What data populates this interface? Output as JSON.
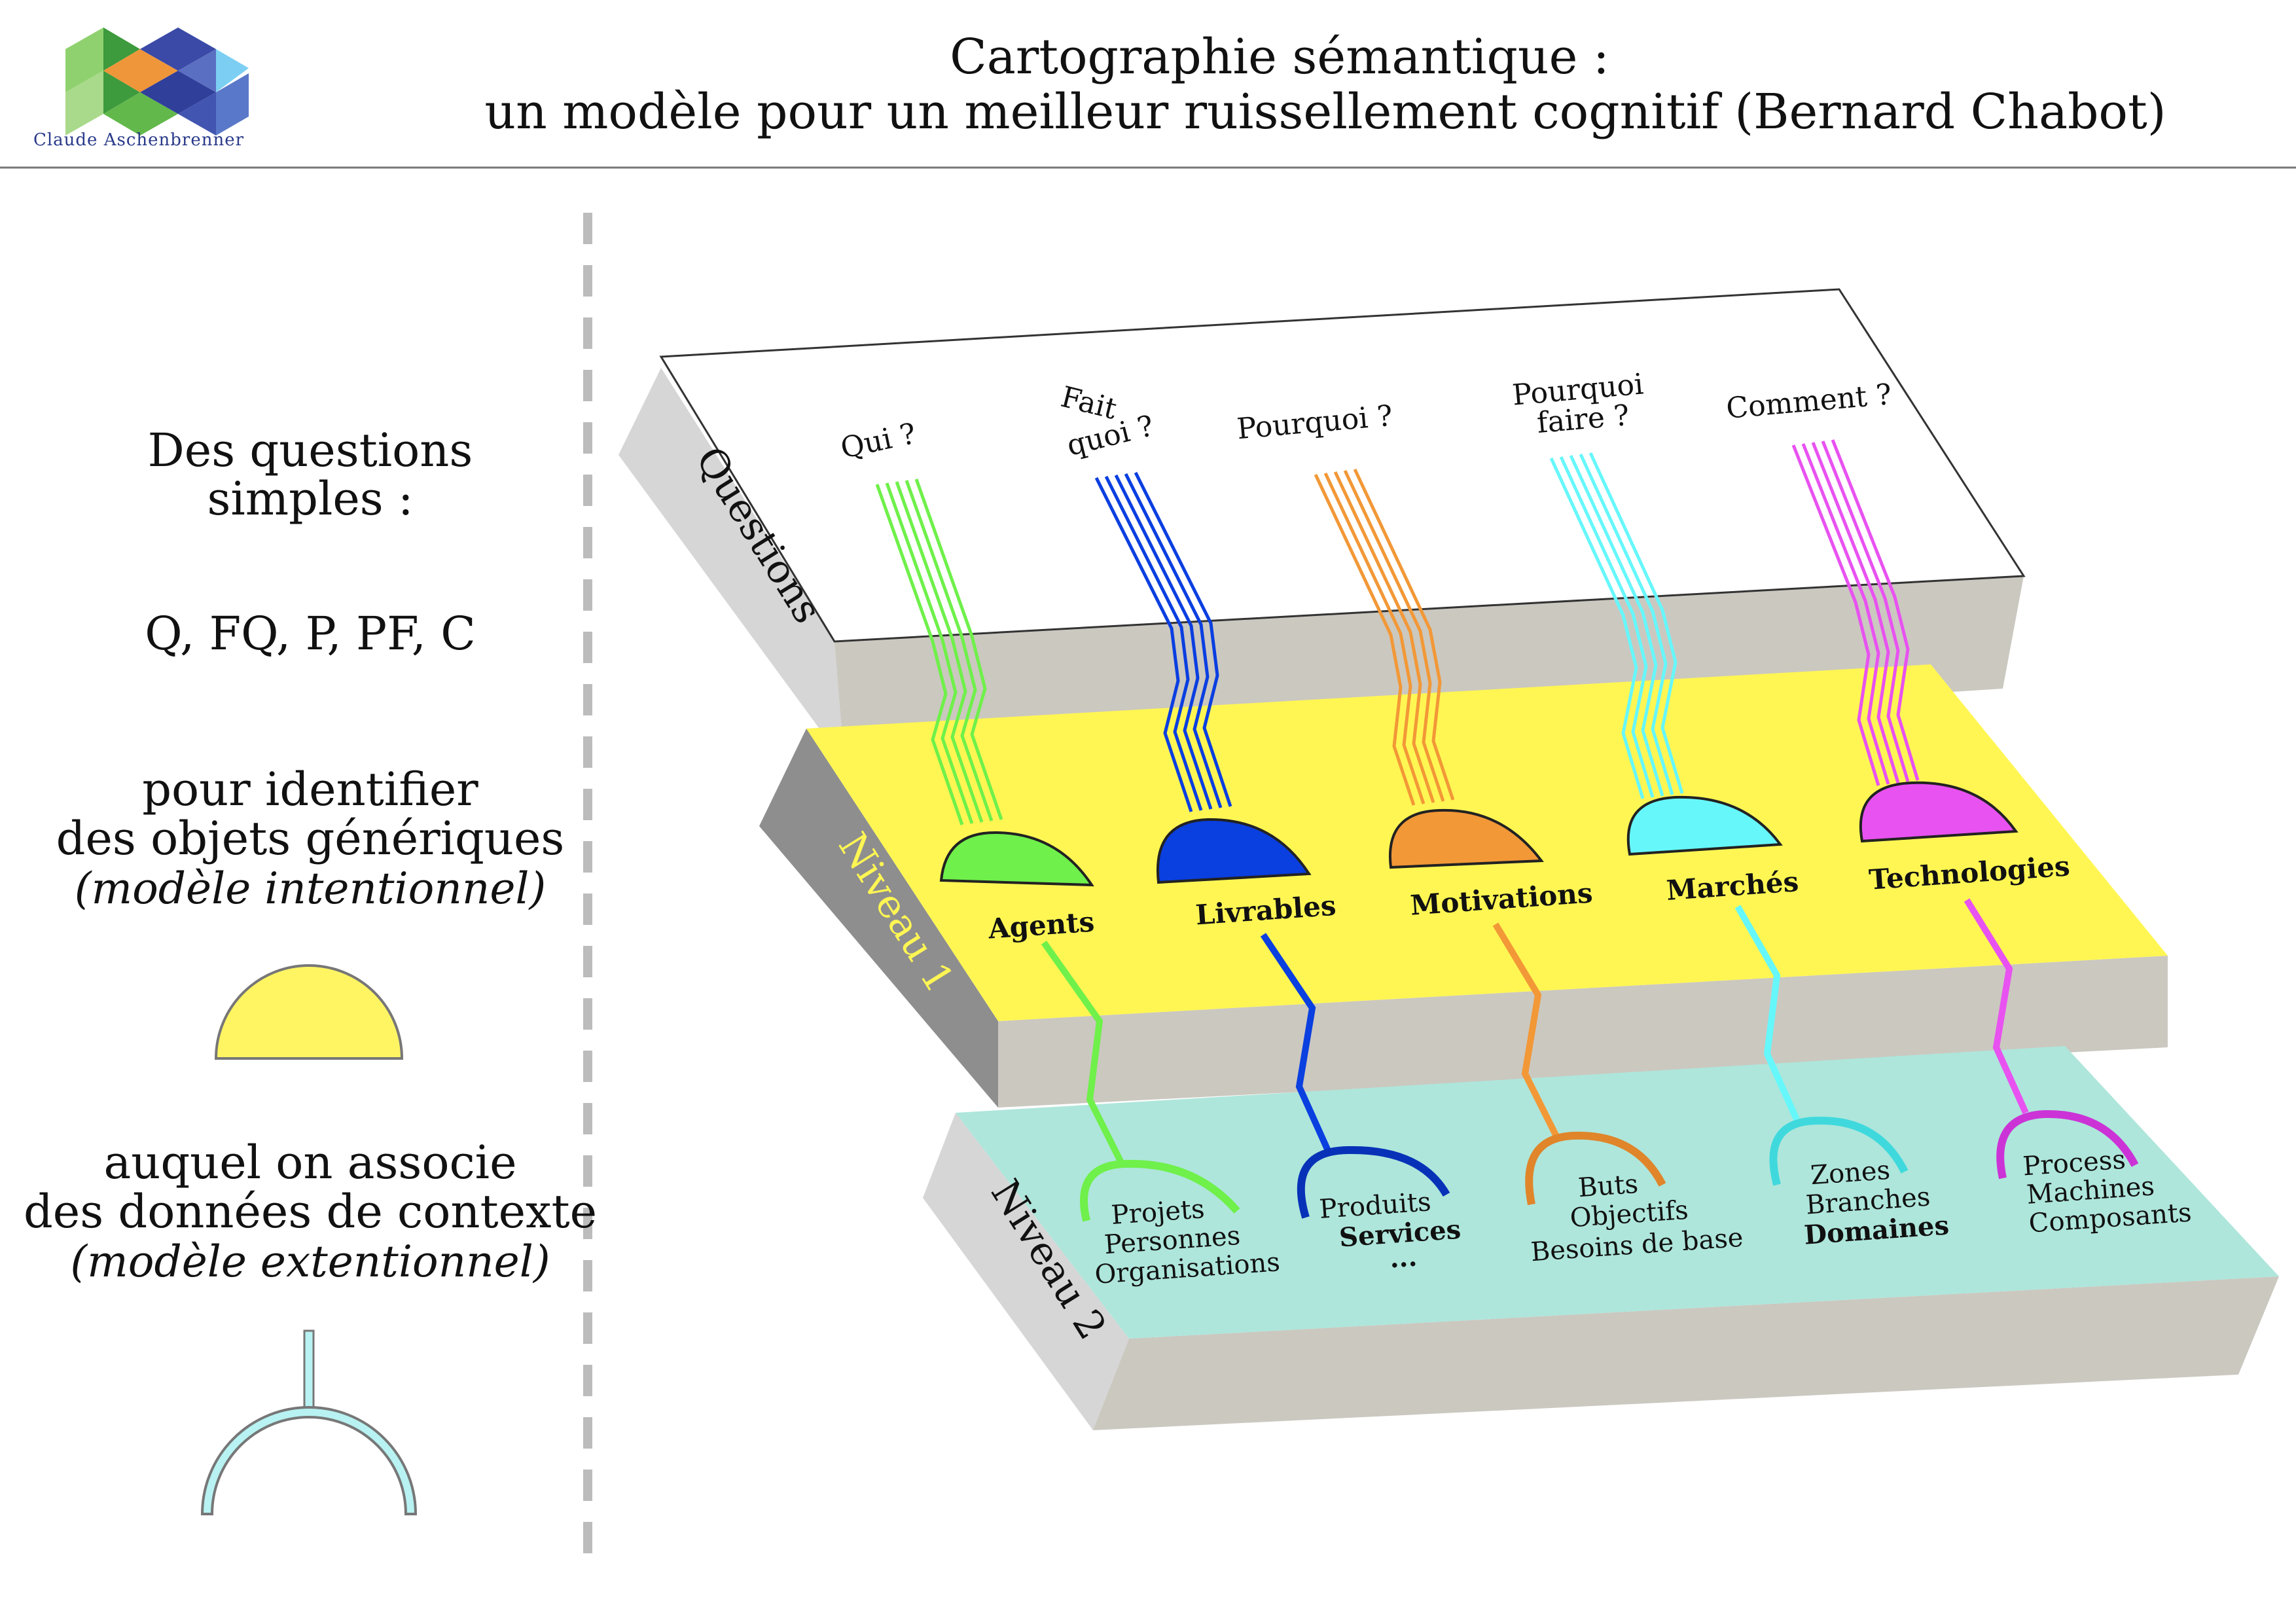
{
  "header": {
    "logo_caption": "Claude Aschenbrenner",
    "title_line1": "Cartographie sémantique :",
    "title_line2": "un modèle pour un meilleur ruissellement cognitif (Bernard Chabot)"
  },
  "legend": {
    "line1": "Des questions",
    "line2": "simples  :",
    "codes": "Q, FQ, P, PF, C",
    "identify1": "pour identifier",
    "identify2": "des objets génériques",
    "identify3": "(modèle intentionnel)",
    "assoc1": "auquel on associe",
    "assoc2": "des données de contexte",
    "assoc3": "(modèle extentionnel)",
    "colors": {
      "semi": "#fff563",
      "arc": "#b8f2f2"
    }
  },
  "layers": {
    "questions_label": "Questions",
    "niveau1_label": "Niveau 1",
    "niveau2_label": "Niveau 2",
    "colors": {
      "top": "#ffffff",
      "niveau1": "#fff653",
      "niveau2": "#aee6db",
      "side": "#d6d6d6",
      "front": "#cbc8c0",
      "niveau1_side": "#8e8e8e"
    }
  },
  "columns": [
    {
      "question": [
        "Qui ?"
      ],
      "object": "Agents",
      "context": [
        "Projets",
        "Personnes",
        "Organisations"
      ],
      "color": "#6ff04a",
      "stroke": "#55cc33"
    },
    {
      "question": [
        "Fait",
        "quoi ?"
      ],
      "object": "Livrables",
      "context": [
        "Produits",
        "Services",
        "..."
      ],
      "color": "#0a3fe0",
      "stroke": "#0732b8"
    },
    {
      "question": [
        "Pourquoi ?"
      ],
      "object": "Motivations",
      "context": [
        "Buts",
        "Objectifs",
        "Besoins de base"
      ],
      "color": "#f29837",
      "stroke": "#e0852a"
    },
    {
      "question": [
        "Pourquoi",
        "faire ?"
      ],
      "object": "Marchés",
      "context": [
        "Zones",
        "Branches",
        "Domaines"
      ],
      "color": "#66f7fb",
      "stroke": "#3fd9dd"
    },
    {
      "question": [
        "Comment ?"
      ],
      "object": "Technologies",
      "context": [
        "Process",
        "Machines",
        "Composants"
      ],
      "color": "#e852f0",
      "stroke": "#cc33d6"
    }
  ]
}
